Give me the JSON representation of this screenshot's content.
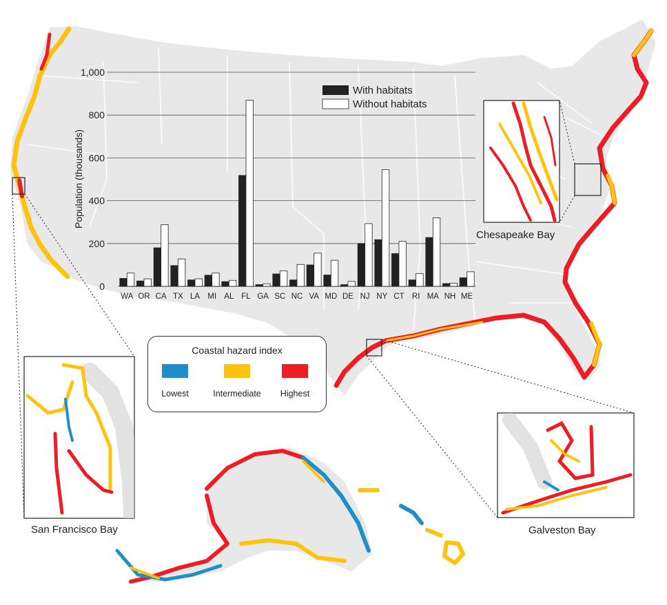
{
  "chart_data": {
    "type": "bar",
    "ylabel": "Population (thousands)",
    "xlabel": "",
    "ylim": [
      0,
      1000
    ],
    "yticks": [
      0,
      200,
      400,
      600,
      800,
      1000
    ],
    "ytick_labels": [
      "0",
      "200",
      "400",
      "600",
      "800",
      "1,000"
    ],
    "grid": true,
    "legend_position": "top-right",
    "categories": [
      "WA",
      "OR",
      "CA",
      "TX",
      "LA",
      "MI",
      "AL",
      "FL",
      "GA",
      "SC",
      "NC",
      "VA",
      "MD",
      "DE",
      "NJ",
      "NY",
      "CT",
      "RI",
      "MA",
      "NH",
      "ME"
    ],
    "series": [
      {
        "name": "With habitats",
        "color": "#222222",
        "values": [
          37,
          25,
          180,
          97,
          30,
          52,
          22,
          518,
          8,
          58,
          30,
          100,
          53,
          8,
          200,
          218,
          153,
          30,
          228,
          13,
          40
        ]
      },
      {
        "name": "Without habitats",
        "color": "#ffffff",
        "values": [
          62,
          35,
          288,
          128,
          35,
          62,
          28,
          870,
          12,
          72,
          102,
          155,
          122,
          23,
          293,
          545,
          210,
          60,
          320,
          15,
          68
        ]
      }
    ]
  },
  "legend": {
    "title": "Coastal hazard index",
    "items": [
      {
        "label": "Lowest",
        "color": "#1e8fcb"
      },
      {
        "label": "Intermediate",
        "color": "#ffc20e"
      },
      {
        "label": "Highest",
        "color": "#ee1c24"
      }
    ]
  },
  "insets": {
    "chesapeake": "Chesapeake Bay",
    "san_francisco": "San  Francisco Bay",
    "galveston": "Galveston Bay"
  },
  "colors": {
    "land": "#e8e8e8",
    "borders": "#ffffff",
    "lowest": "#1e8fcb",
    "intermediate": "#ffc20e",
    "highest": "#ee1c24"
  }
}
